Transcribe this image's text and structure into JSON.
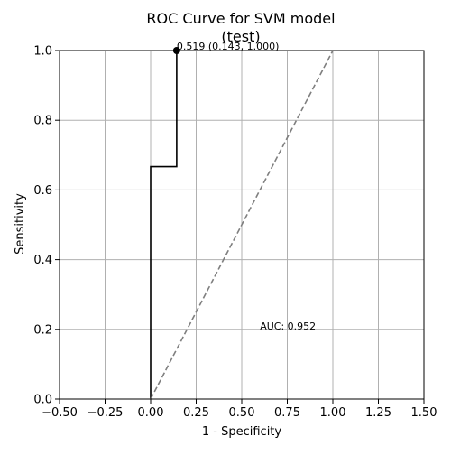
{
  "chart_data": {
    "type": "line",
    "title_line1": "ROC Curve for SVM model",
    "title_line2": "(test)",
    "xlabel": "1 - Specificity",
    "ylabel": "Sensitivity",
    "xlim": [
      -0.5,
      1.5
    ],
    "ylim": [
      0.0,
      1.0
    ],
    "x_ticks": [
      -0.5,
      -0.25,
      0.0,
      0.25,
      0.5,
      0.75,
      1.0,
      1.25,
      1.5
    ],
    "x_tick_labels": [
      "−0.50",
      "−0.25",
      "0.00",
      "0.25",
      "0.50",
      "0.75",
      "1.00",
      "1.25",
      "1.50"
    ],
    "y_ticks": [
      0.0,
      0.2,
      0.4,
      0.6,
      0.8,
      1.0
    ],
    "y_tick_labels": [
      "0.0",
      "0.2",
      "0.4",
      "0.6",
      "0.8",
      "1.0"
    ],
    "grid": true,
    "series": [
      {
        "style": "step",
        "color": "#000000",
        "x": [
          0.0,
          0.0,
          0.143,
          0.143
        ],
        "y": [
          0.0,
          0.667,
          0.667,
          1.0
        ]
      },
      {
        "style": "dashed",
        "color": "#7f7f7f",
        "x": [
          0.0,
          1.0
        ],
        "y": [
          0.0,
          1.0
        ]
      }
    ],
    "threshold_point": {
      "x": 0.143,
      "y": 1.0,
      "label": "0.519 (0.143, 1.000)"
    },
    "auc_label": "AUC: 0.952",
    "auc_position": {
      "x": 0.6,
      "y": 0.2
    }
  }
}
